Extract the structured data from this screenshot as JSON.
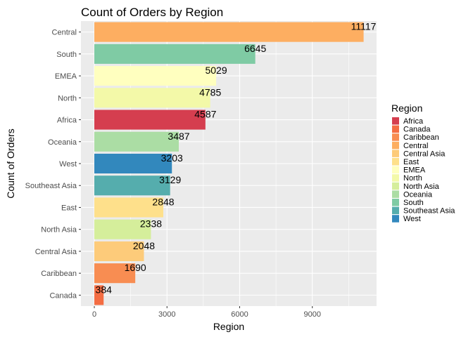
{
  "chart_data": {
    "type": "bar",
    "orientation": "horizontal",
    "title": "Count of Orders by Region",
    "xlabel": "Region",
    "ylabel": "Count of Orders",
    "xlim": [
      0,
      11100
    ],
    "xticks": [
      0,
      3000,
      6000,
      9000
    ],
    "grid": true,
    "legend_position": "right",
    "legend_title": "Region",
    "categories": [
      "Central",
      "South",
      "EMEA",
      "North",
      "Africa",
      "Oceania",
      "West",
      "Southeast Asia",
      "East",
      "North Asia",
      "Central Asia",
      "Caribbean",
      "Canada"
    ],
    "values": [
      11117,
      6645,
      5029,
      4785,
      4587,
      3487,
      3203,
      3129,
      2848,
      2338,
      2048,
      1690,
      384
    ],
    "legend_entries": [
      "Africa",
      "Canada",
      "Caribbean",
      "Central",
      "Central Asia",
      "East",
      "EMEA",
      "North",
      "North Asia",
      "Oceania",
      "South",
      "Southeast Asia",
      "West"
    ],
    "colors": {
      "Africa": "#D53E4F",
      "Canada": "#F46D43",
      "Caribbean": "#F88D52",
      "Central": "#FDAE61",
      "Central Asia": "#FDCB7A",
      "East": "#FEE08B",
      "EMEA": "#FFFFBF",
      "North": "#F3F9A8",
      "North Asia": "#D5EE9B",
      "Oceania": "#ABDDA4",
      "South": "#7FCBA4",
      "Southeast Asia": "#55ADAD",
      "West": "#3288BD"
    },
    "panel_background": "#EBEBEB",
    "gridline_color": "#FFFFFF"
  }
}
